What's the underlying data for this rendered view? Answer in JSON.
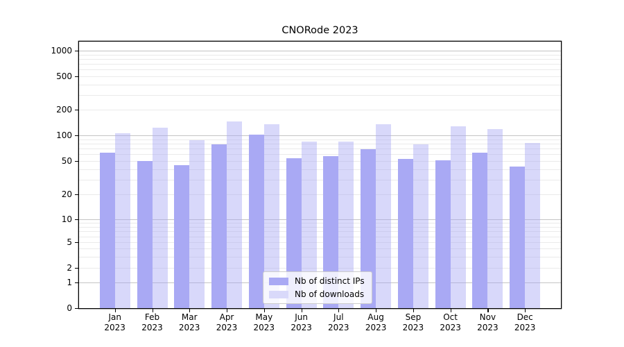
{
  "title": "CNORode 2023",
  "chart_data": {
    "type": "bar",
    "title": "CNORode 2023",
    "categories": [
      "Jan 2023",
      "Feb 2023",
      "Mar 2023",
      "Apr 2023",
      "May 2023",
      "Jun 2023",
      "Jul 2023",
      "Aug 2023",
      "Sep 2023",
      "Oct 2023",
      "Nov 2023",
      "Dec 2023"
    ],
    "series": [
      {
        "name": "Nb of distinct IPs",
        "color": "#a9a9f4",
        "values": [
          63,
          50,
          44,
          78,
          102,
          54,
          57,
          68,
          53,
          51,
          62,
          43
        ]
      },
      {
        "name": "Nb of downloads",
        "color": "rgba(169,169,244,0.45)",
        "color_on_white": "#d9d9fa",
        "values": [
          105,
          123,
          87,
          145,
          136,
          84,
          84,
          136,
          79,
          127,
          119,
          81
        ]
      }
    ],
    "xlabel": "",
    "ylabel": "",
    "yscale": "symlog",
    "yticks": [
      0,
      1,
      2,
      5,
      10,
      20,
      50,
      100,
      200,
      500,
      1000
    ],
    "ylim": [
      0,
      1300
    ],
    "grid": "horizontal, major and log-minor lines",
    "legend_position": "lower center"
  },
  "colors": {
    "grid_major": "#c4c4c4",
    "grid_minor": "#eaeaea",
    "axis": "#000000",
    "background": "#ffffff"
  }
}
